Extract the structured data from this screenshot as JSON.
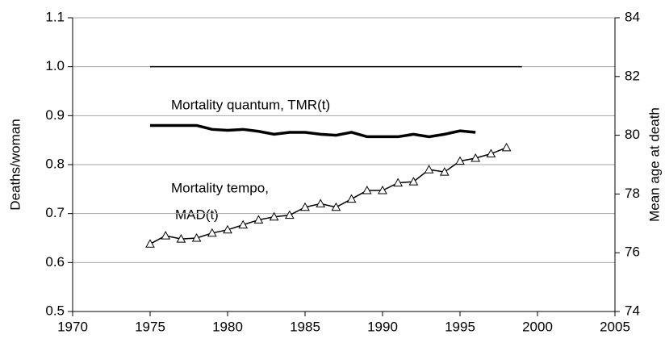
{
  "chart_data": {
    "type": "line",
    "ylabel": "Deaths/woman",
    "y2label": "Mean age at death",
    "xlim": [
      1970,
      2005
    ],
    "xticks": [
      1970,
      1975,
      1980,
      1985,
      1990,
      1995,
      2000,
      2005
    ],
    "ylim": [
      0.5,
      1.1
    ],
    "yticks": [
      0.5,
      0.6,
      0.7,
      0.8,
      0.9,
      {
        "value": 1,
        "label": "1.0"
      },
      1.1
    ],
    "y2lim": [
      74,
      84
    ],
    "y2ticks": [
      74,
      76,
      78,
      80,
      82,
      84
    ],
    "grid": true,
    "annotations": [
      {
        "text": "Mortality quantum, TMR(t)"
      },
      {
        "text": "Mortality tempo,"
      },
      {
        "text": "MAD(t)"
      }
    ],
    "series": [
      {
        "color": "#000000",
        "x": [
          1975,
          1999
        ],
        "values": [
          1,
          1
        ]
      },
      {
        "color": "#000000",
        "x": [
          1975,
          1976,
          1977,
          1978,
          1979,
          1980,
          1981,
          1982,
          1983,
          1984,
          1985,
          1986,
          1987,
          1988,
          1989,
          1990,
          1991,
          1992,
          1993,
          1994,
          1995,
          1996
        ],
        "values": [
          0.88,
          0.88,
          0.88,
          0.88,
          0.872,
          0.87,
          0.872,
          0.868,
          0.862,
          0.866,
          0.866,
          0.862,
          0.86,
          0.866,
          0.857,
          0.857,
          0.857,
          0.862,
          0.857,
          0.862,
          0.869,
          0.866
        ]
      },
      {
        "color": "#000000",
        "axis": "y2",
        "marker": "triangle",
        "x": [
          1975,
          1976,
          1977,
          1978,
          1979,
          1980,
          1981,
          1982,
          1983,
          1984,
          1985,
          1986,
          1987,
          1988,
          1989,
          1990,
          1991,
          1992,
          1993,
          1994,
          1995,
          1996,
          1997,
          1998
        ],
        "values": [
          76.3,
          76.58,
          76.47,
          76.5,
          76.67,
          76.78,
          76.95,
          77.12,
          77.22,
          77.28,
          77.55,
          77.67,
          77.55,
          77.83,
          78.12,
          78.12,
          78.38,
          78.42,
          78.83,
          78.75,
          79.12,
          79.22,
          79.37,
          79.58
        ]
      }
    ]
  }
}
